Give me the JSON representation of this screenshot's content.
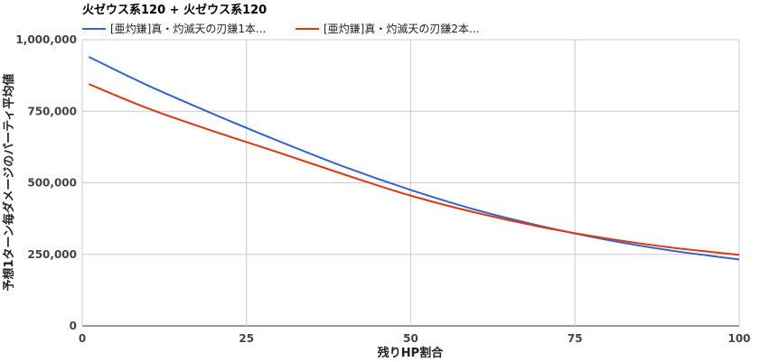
{
  "chart_data": {
    "type": "line",
    "title": "火ゼウス系120 + 火ゼウス系120",
    "xlabel": "残りHP割合",
    "ylabel": "予想1ターン毎ダメージのパーティ平均値",
    "xlim": [
      0,
      100
    ],
    "ylim": [
      0,
      1000000
    ],
    "x_ticks": [
      "0",
      "25",
      "50",
      "75",
      "100"
    ],
    "y_ticks": [
      "0",
      "250,000",
      "500,000",
      "750,000",
      "1,000,000"
    ],
    "legend_position": "top",
    "grid": true,
    "series": [
      {
        "name": "[亜灼鎌]真・灼滅天の刃鎌1本...",
        "color": "#3366cc",
        "x": [
          1,
          10,
          20,
          30,
          40,
          50,
          60,
          70,
          80,
          90,
          100
        ],
        "y": [
          940000,
          840000,
          740000,
          645000,
          555000,
          475000,
          405000,
          348000,
          300000,
          262000,
          232000
        ]
      },
      {
        "name": "[亜灼鎌]真・灼滅天の刃鎌2本...",
        "color": "#dc3912",
        "x": [
          1,
          10,
          20,
          30,
          40,
          50,
          60,
          70,
          80,
          90,
          100
        ],
        "y": [
          845000,
          760000,
          680000,
          605000,
          528000,
          455000,
          395000,
          345000,
          305000,
          273000,
          248000
        ]
      }
    ]
  }
}
